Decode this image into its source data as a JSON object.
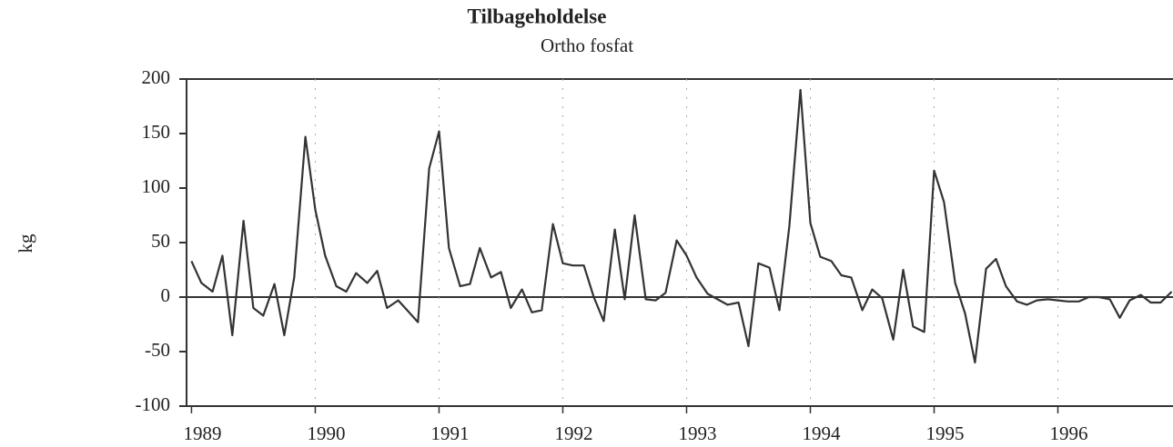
{
  "chart_data": {
    "type": "line",
    "title": "Tilbageholdelse",
    "subtitle": "Ortho fosfat",
    "ylabel": "kg",
    "x": [
      1989.0,
      1989.08,
      1989.17,
      1989.25,
      1989.33,
      1989.42,
      1989.5,
      1989.58,
      1989.67,
      1989.75,
      1989.83,
      1989.92,
      1990.0,
      1990.08,
      1990.17,
      1990.25,
      1990.33,
      1990.42,
      1990.5,
      1990.58,
      1990.67,
      1990.75,
      1990.83,
      1990.92,
      1991.0,
      1991.08,
      1991.17,
      1991.25,
      1991.33,
      1991.42,
      1991.5,
      1991.58,
      1991.67,
      1991.75,
      1991.83,
      1991.92,
      1992.0,
      1992.08,
      1992.17,
      1992.25,
      1992.33,
      1992.42,
      1992.5,
      1992.58,
      1992.67,
      1992.75,
      1992.83,
      1992.92,
      1993.0,
      1993.08,
      1993.17,
      1993.25,
      1993.33,
      1993.42,
      1993.5,
      1993.58,
      1993.67,
      1993.75,
      1993.83,
      1993.92,
      1994.0,
      1994.08,
      1994.17,
      1994.25,
      1994.33,
      1994.42,
      1994.5,
      1994.58,
      1994.67,
      1994.75,
      1994.83,
      1994.92,
      1995.0,
      1995.08,
      1995.17,
      1995.25,
      1995.33,
      1995.42,
      1995.5,
      1995.58,
      1995.67,
      1995.75,
      1995.83,
      1995.92,
      1996.0,
      1996.08,
      1996.17,
      1996.25,
      1996.33,
      1996.42,
      1996.5,
      1996.58,
      1996.67,
      1996.75,
      1996.83,
      1996.92
    ],
    "series": [
      {
        "name": "Ortho fosfat",
        "color": "#333333",
        "values": [
          33,
          13,
          5,
          38,
          -35,
          70,
          -10,
          -17,
          12,
          -35,
          18,
          147,
          80,
          38,
          10,
          5,
          22,
          13,
          24,
          -10,
          -3,
          -13,
          -23,
          118,
          152,
          45,
          10,
          12,
          45,
          18,
          23,
          -10,
          7,
          -14,
          -12,
          67,
          31,
          29,
          29,
          0,
          -22,
          62,
          -2,
          75,
          -2,
          -3,
          4,
          52,
          38,
          18,
          3,
          -2,
          -7,
          -5,
          -45,
          31,
          27,
          -12,
          65,
          190,
          68,
          37,
          33,
          20,
          18,
          -12,
          7,
          -1,
          -39,
          25,
          -27,
          -32,
          116,
          87,
          13,
          -15,
          -60,
          26,
          35,
          10,
          -4,
          -7,
          -3,
          -2,
          -3,
          -4,
          -4,
          0,
          0,
          -2,
          -19,
          -3,
          2,
          -5,
          -5,
          5
        ]
      }
    ],
    "xlim": [
      1988.96,
      1996.93
    ],
    "xticks": [
      1989,
      1990,
      1991,
      1992,
      1993,
      1994,
      1995,
      1996
    ],
    "ylim": [
      -100,
      200
    ],
    "yticks": [
      -100,
      -50,
      0,
      50,
      100,
      150,
      200
    ],
    "grid": true
  }
}
